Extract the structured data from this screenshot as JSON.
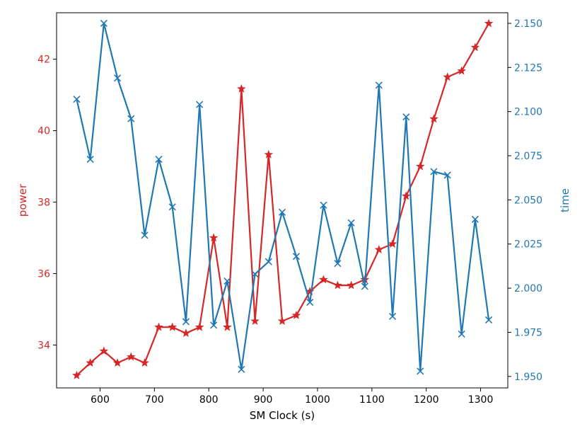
{
  "chart_data": {
    "type": "line",
    "title": "",
    "xlabel": "SM Clock (s)",
    "ylabel_left": "power",
    "ylabel_right": "time",
    "xlim": [
      520,
      1350
    ],
    "ylim_left": [
      32.8,
      43.3
    ],
    "ylim_right": [
      1.9435,
      2.156
    ],
    "grid": false,
    "legend": "none",
    "x_ticks": [
      600,
      700,
      800,
      900,
      1000,
      1100,
      1200,
      1300
    ],
    "y_left_ticks": [
      34,
      36,
      38,
      40,
      42
    ],
    "y_right_ticks": [
      1.95,
      1.975,
      2.0,
      2.025,
      2.05,
      2.075,
      2.1,
      2.125,
      2.15
    ],
    "y_right_tick_labels": [
      "1.950",
      "1.975",
      "2.000",
      "2.025",
      "2.050",
      "2.075",
      "2.100",
      "2.125",
      "2.150"
    ],
    "x": [
      557,
      582,
      607,
      632,
      657,
      682,
      708,
      733,
      758,
      783,
      809,
      834,
      860,
      885,
      910,
      935,
      961,
      986,
      1011,
      1037,
      1062,
      1087,
      1113,
      1138,
      1163,
      1189,
      1214,
      1239,
      1265,
      1290,
      1315
    ],
    "series": [
      {
        "axis": "left",
        "color": "#d62728",
        "marker": "star",
        "values": [
          33.15,
          33.5,
          33.83,
          33.5,
          33.67,
          33.5,
          34.5,
          34.5,
          34.33,
          34.5,
          37.0,
          34.5,
          41.17,
          34.67,
          39.33,
          34.67,
          34.83,
          35.5,
          35.83,
          35.67,
          35.67,
          35.83,
          36.67,
          36.83,
          38.17,
          39.0,
          40.33,
          41.5,
          41.67,
          42.33,
          43.0
        ]
      },
      {
        "axis": "right",
        "color": "#1f77b4",
        "marker": "x",
        "values": [
          2.107,
          2.073,
          2.15,
          2.119,
          2.096,
          2.03,
          2.073,
          2.046,
          1.981,
          2.104,
          1.979,
          2.004,
          1.954,
          2.008,
          2.015,
          2.043,
          2.018,
          1.992,
          2.047,
          2.014,
          2.037,
          2.001,
          2.115,
          1.984,
          2.097,
          1.953,
          2.066,
          2.064,
          1.974,
          2.039,
          1.982
        ]
      }
    ],
    "colors": {
      "left_axis": "#d62728",
      "right_axis": "#1f77b4",
      "frame": "#000000"
    }
  }
}
